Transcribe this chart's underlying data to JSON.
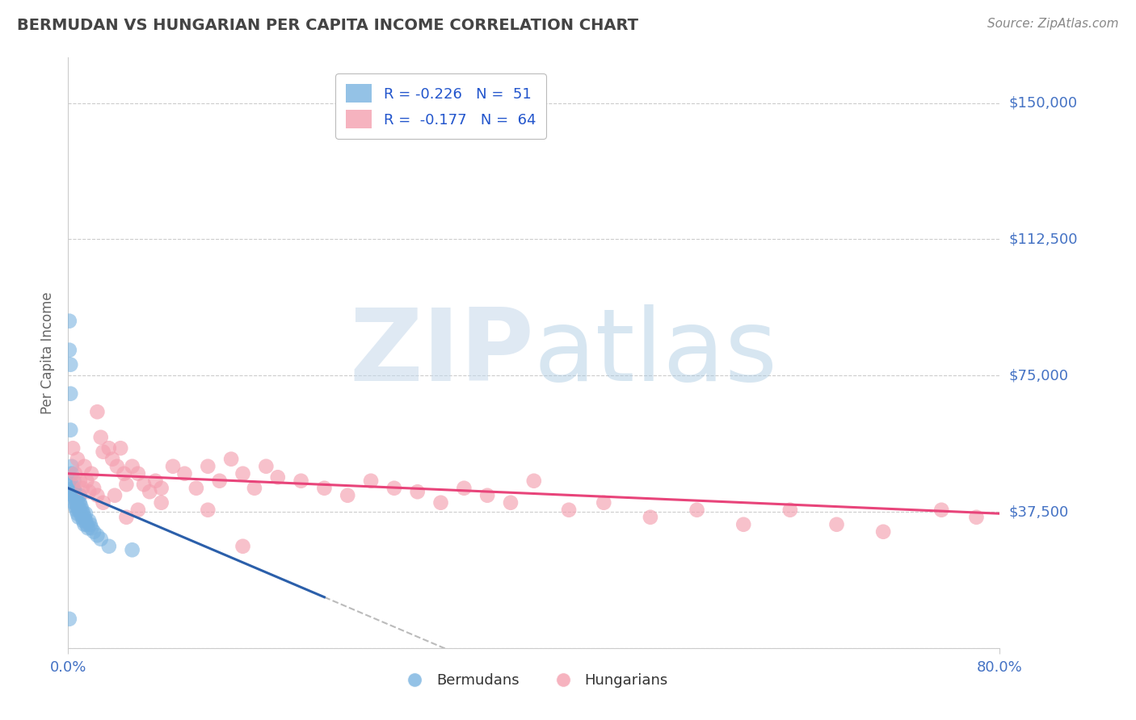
{
  "title": "BERMUDAN VS HUNGARIAN PER CAPITA INCOME CORRELATION CHART",
  "source_text": "Source: ZipAtlas.com",
  "ylabel": "Per Capita Income",
  "xlim": [
    0.0,
    0.8
  ],
  "ylim": [
    0,
    162500
  ],
  "yticks": [
    0,
    37500,
    75000,
    112500,
    150000
  ],
  "ytick_labels": [
    "",
    "$37,500",
    "$75,000",
    "$112,500",
    "$150,000"
  ],
  "blue_color": "#7ab3e0",
  "pink_color": "#f4a0b0",
  "trend_blue_color": "#2b5faa",
  "trend_pink_color": "#e8447a",
  "trend_dash_color": "#bbbbbb",
  "title_color": "#444444",
  "source_color": "#888888",
  "axis_label_color": "#666666",
  "tick_color": "#4472c4",
  "grid_color": "#cccccc",
  "background_color": "#ffffff",
  "legend_text_color": "#333333",
  "legend_value_color": "#2255cc",
  "watermark_zip_color": "#c8d8e8",
  "watermark_atlas_color": "#a8c8e8",
  "bermudans_x": [
    0.001,
    0.001,
    0.002,
    0.002,
    0.002,
    0.003,
    0.003,
    0.003,
    0.004,
    0.004,
    0.004,
    0.005,
    0.005,
    0.005,
    0.005,
    0.006,
    0.006,
    0.006,
    0.007,
    0.007,
    0.007,
    0.008,
    0.008,
    0.008,
    0.009,
    0.009,
    0.009,
    0.01,
    0.01,
    0.01,
    0.011,
    0.011,
    0.012,
    0.012,
    0.013,
    0.013,
    0.014,
    0.014,
    0.015,
    0.015,
    0.016,
    0.017,
    0.018,
    0.019,
    0.02,
    0.022,
    0.025,
    0.028,
    0.035,
    0.055,
    0.001
  ],
  "bermudans_y": [
    90000,
    82000,
    78000,
    70000,
    60000,
    50000,
    48000,
    45000,
    44000,
    43000,
    42000,
    46000,
    44000,
    42000,
    40000,
    43000,
    41000,
    39000,
    42000,
    40000,
    38000,
    41000,
    39000,
    37000,
    40000,
    38000,
    36000,
    42000,
    40000,
    38000,
    39000,
    37000,
    38000,
    36000,
    37000,
    35000,
    36000,
    34000,
    37000,
    35000,
    34000,
    33000,
    35000,
    34000,
    33000,
    32000,
    31000,
    30000,
    28000,
    27000,
    8000
  ],
  "hungarians_x": [
    0.004,
    0.006,
    0.008,
    0.01,
    0.012,
    0.014,
    0.016,
    0.018,
    0.02,
    0.022,
    0.025,
    0.028,
    0.03,
    0.035,
    0.038,
    0.042,
    0.045,
    0.048,
    0.05,
    0.055,
    0.06,
    0.065,
    0.07,
    0.075,
    0.08,
    0.09,
    0.1,
    0.11,
    0.12,
    0.13,
    0.14,
    0.15,
    0.16,
    0.17,
    0.18,
    0.2,
    0.22,
    0.24,
    0.26,
    0.28,
    0.3,
    0.32,
    0.34,
    0.36,
    0.38,
    0.4,
    0.43,
    0.46,
    0.5,
    0.54,
    0.58,
    0.62,
    0.66,
    0.7,
    0.75,
    0.78,
    0.03,
    0.04,
    0.06,
    0.08,
    0.025,
    0.05,
    0.12,
    0.15
  ],
  "hungarians_y": [
    55000,
    48000,
    52000,
    46000,
    44000,
    50000,
    46000,
    43000,
    48000,
    44000,
    65000,
    58000,
    54000,
    55000,
    52000,
    50000,
    55000,
    48000,
    45000,
    50000,
    48000,
    45000,
    43000,
    46000,
    44000,
    50000,
    48000,
    44000,
    50000,
    46000,
    52000,
    48000,
    44000,
    50000,
    47000,
    46000,
    44000,
    42000,
    46000,
    44000,
    43000,
    40000,
    44000,
    42000,
    40000,
    46000,
    38000,
    40000,
    36000,
    38000,
    34000,
    38000,
    34000,
    32000,
    38000,
    36000,
    40000,
    42000,
    38000,
    40000,
    42000,
    36000,
    38000,
    28000
  ]
}
